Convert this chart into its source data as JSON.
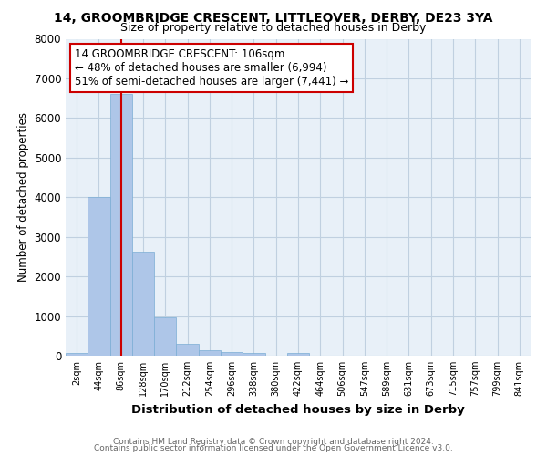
{
  "title": "14, GROOMBRIDGE CRESCENT, LITTLEOVER, DERBY, DE23 3YA",
  "subtitle": "Size of property relative to detached houses in Derby",
  "xlabel": "Distribution of detached houses by size in Derby",
  "ylabel": "Number of detached properties",
  "bin_labels": [
    "2sqm",
    "44sqm",
    "86sqm",
    "128sqm",
    "170sqm",
    "212sqm",
    "254sqm",
    "296sqm",
    "338sqm",
    "380sqm",
    "422sqm",
    "464sqm",
    "506sqm",
    "547sqm",
    "589sqm",
    "631sqm",
    "673sqm",
    "715sqm",
    "757sqm",
    "799sqm",
    "841sqm"
  ],
  "bar_heights": [
    80,
    4000,
    6600,
    2620,
    960,
    310,
    130,
    100,
    60,
    0,
    60,
    0,
    0,
    0,
    0,
    0,
    0,
    0,
    0,
    0,
    0
  ],
  "bar_color": "#aec6e8",
  "bar_edge_color": "#7aadd4",
  "vline_x_index": 2,
  "vline_color": "#cc0000",
  "ylim": [
    0,
    8000
  ],
  "yticks": [
    0,
    1000,
    2000,
    3000,
    4000,
    5000,
    6000,
    7000,
    8000
  ],
  "annotation_text": "14 GROOMBRIDGE CRESCENT: 106sqm\n← 48% of detached houses are smaller (6,994)\n51% of semi-detached houses are larger (7,441) →",
  "annotation_box_color": "#ffffff",
  "annotation_box_edge": "#cc0000",
  "footer1": "Contains HM Land Registry data © Crown copyright and database right 2024.",
  "footer2": "Contains public sector information licensed under the Open Government Licence v3.0.",
  "background_color": "#ffffff",
  "plot_bg_color": "#e8f0f8",
  "grid_color": "#c0d0e0"
}
